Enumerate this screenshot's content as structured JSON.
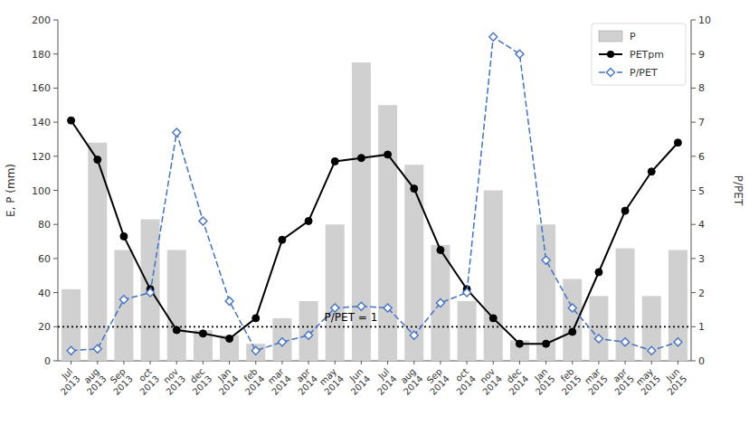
{
  "chart_data": {
    "type": "bar",
    "categories": [
      "Jul\n2013",
      "aug\n2013",
      "Sep\n2013",
      "oct\n2013",
      "nov\n2013",
      "dec\n2013",
      "Jan\n2014",
      "feb\n2014",
      "mar\n2014",
      "apr\n2014",
      "may\n2014",
      "Jun\n2014",
      "Jul\n2014",
      "aug\n2014",
      "Sep\n2014",
      "oct\n2014",
      "nov\n2014",
      "dec\n2014",
      "Jan\n2015",
      "feb\n2015",
      "mar\n2015",
      "apr\n2015",
      "may\n2015",
      "Jun\n2015"
    ],
    "series": [
      {
        "name": "P",
        "type": "bar",
        "color": "#d0d0d0",
        "values": [
          42,
          128,
          65,
          83,
          65,
          18,
          15,
          10,
          25,
          35,
          80,
          175,
          150,
          115,
          68,
          35,
          100,
          12,
          80,
          48,
          38,
          66,
          38,
          65
        ]
      },
      {
        "name": "PETpm",
        "type": "line",
        "color": "#000000",
        "marker": "circle",
        "line_style": "solid",
        "values": [
          141,
          118,
          73,
          42,
          18,
          16,
          13,
          25,
          71,
          82,
          117,
          119,
          121,
          101,
          65,
          42,
          25,
          10,
          10,
          17,
          52,
          88,
          111,
          128
        ]
      },
      {
        "name": "P/PET",
        "type": "line",
        "axis": "y2",
        "color": "#4472c4",
        "marker": "diamond",
        "line_style": "dashed",
        "values": [
          0.3,
          0.35,
          1.8,
          2.0,
          6.7,
          4.1,
          1.75,
          0.3,
          0.55,
          0.75,
          1.55,
          1.6,
          1.55,
          0.75,
          1.7,
          2.0,
          9.5,
          9.0,
          2.95,
          1.55,
          0.65,
          0.55,
          0.3,
          0.55
        ]
      }
    ],
    "ylabel": "E, P (mm)",
    "y2label": "P/PET",
    "ylim": [
      0,
      200
    ],
    "yticks": [
      0,
      20,
      40,
      60,
      80,
      100,
      120,
      140,
      160,
      180,
      200
    ],
    "y2lim": [
      0,
      10
    ],
    "y2ticks": [
      0,
      1,
      2,
      3,
      4,
      5,
      6,
      7,
      8,
      9,
      10
    ],
    "reference_line": 20,
    "annotation": "P/PET = 1",
    "grid": false,
    "legend": "upper right"
  }
}
